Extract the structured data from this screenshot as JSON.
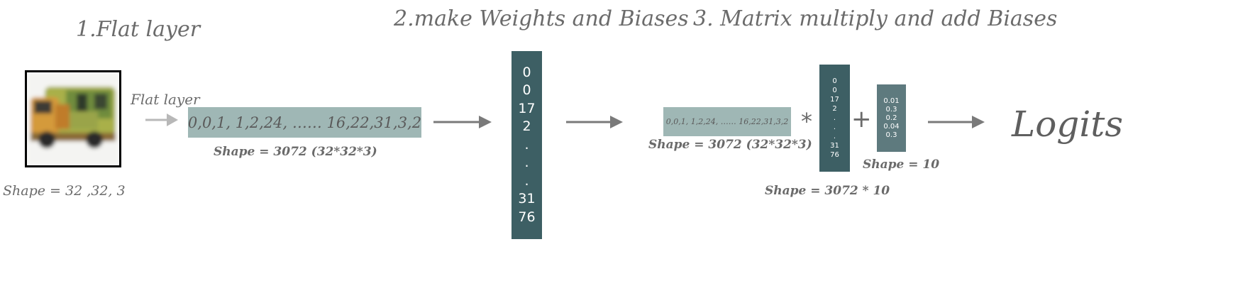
{
  "headings": {
    "step1": "1.Flat layer",
    "step2": "2.make Weights and Biases",
    "step3": "3. Matrix multiply and add Biases"
  },
  "image": {
    "shape_label": "Shape = 32 ,32, 3"
  },
  "flat_arrow_label": "Flat layer",
  "flat_vector": {
    "text": "0,0,1, 1,2,24,  …… 16,22,31,3,2",
    "shape_label": "Shape = 3072 (32*32*3)"
  },
  "weights_column": {
    "values": [
      "0",
      "0",
      "17",
      "2",
      ".",
      ".",
      ".",
      "31",
      "76"
    ]
  },
  "multiply": {
    "vector_text": "0,0,1, 1,2,24,  …… 16,22,31,3,2",
    "vector_shape_label": "Shape = 3072 (32*32*3)",
    "operator_multiply": "*",
    "weights_values": [
      "0",
      "0",
      "17",
      "2",
      ".",
      ".",
      ".",
      "31",
      "76"
    ],
    "weights_shape_label": "Shape = 3072 * 10",
    "operator_add": "+",
    "bias_values": [
      "0.01",
      "0.3",
      "0.2",
      "0.04",
      "0.3"
    ],
    "bias_shape_label": "Shape = 10"
  },
  "output_label": "Logits",
  "colors": {
    "flat_box": "#9fb7b5",
    "weights": "#3d5f64",
    "bias": "#5e7a7e",
    "arrow": "#7a7a7a",
    "arrow_light": "#b8b8b8"
  }
}
